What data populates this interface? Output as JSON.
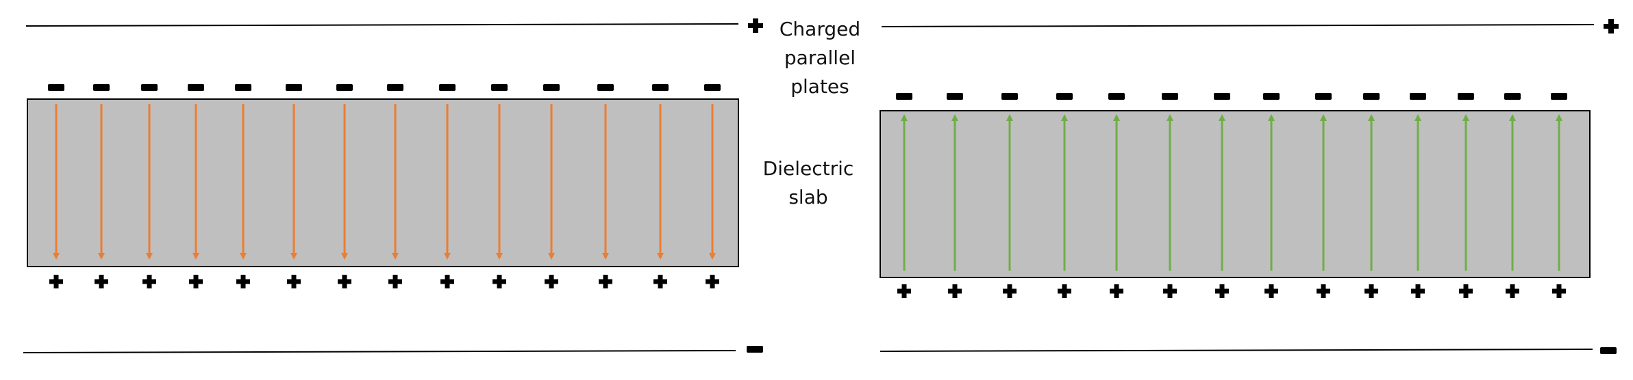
{
  "labels": {
    "plates_line1": "Charged",
    "plates_line2": "parallel",
    "plates_line3": "plates",
    "slab_line1": "Dielectric",
    "slab_line2": "slab"
  },
  "colors": {
    "slab_fill": "#bfbfbf",
    "left_arrows": "#ed7d31",
    "right_arrows": "#70ad47",
    "charges": "#000000"
  },
  "panels": [
    {
      "name": "left",
      "plate_top_charge": "+",
      "plate_bottom_charge": "-",
      "slab_top_charge": "-",
      "slab_bottom_charge": "+",
      "arrow_direction": "down",
      "arrow_count": 14,
      "arrow_color_key": "left_arrows"
    },
    {
      "name": "right",
      "plate_top_charge": "+",
      "plate_bottom_charge": "-",
      "slab_top_charge": "-",
      "slab_bottom_charge": "+",
      "arrow_direction": "up",
      "arrow_count": 14,
      "arrow_color_key": "right_arrows"
    }
  ],
  "icons": {
    "plus": "plus-icon",
    "minus": "minus-icon",
    "arrow": "arrow-icon"
  }
}
